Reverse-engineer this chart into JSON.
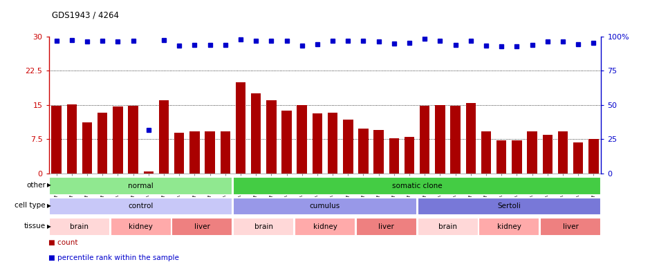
{
  "title": "GDS1943 / 4264",
  "samples": [
    "GSM69825",
    "GSM69826",
    "GSM69827",
    "GSM69828",
    "GSM69801",
    "GSM69802",
    "GSM69803",
    "GSM69804",
    "GSM69813",
    "GSM69814",
    "GSM69815",
    "GSM69816",
    "GSM69833",
    "GSM69834",
    "GSM69835",
    "GSM69836",
    "GSM69809",
    "GSM69810",
    "GSM69811",
    "GSM69812",
    "GSM69821",
    "GSM69822",
    "GSM69823",
    "GSM69824",
    "GSM69829",
    "GSM69830",
    "GSM69831",
    "GSM69832",
    "GSM69805",
    "GSM69806",
    "GSM69807",
    "GSM69808",
    "GSM69817",
    "GSM69818",
    "GSM69819",
    "GSM69820"
  ],
  "counts": [
    14.8,
    15.1,
    11.2,
    13.3,
    14.7,
    14.9,
    0.4,
    16.0,
    9.0,
    9.2,
    9.3,
    9.3,
    20.0,
    17.5,
    16.0,
    13.8,
    15.0,
    13.2,
    13.3,
    11.8,
    9.9,
    9.5,
    7.8,
    8.0,
    14.9,
    15.0,
    14.9,
    15.5,
    9.2,
    7.2,
    7.2,
    9.2,
    8.5,
    9.2,
    6.8,
    7.5
  ],
  "percentiles_left": [
    29.0,
    29.2,
    28.9,
    29.0,
    28.9,
    29.0,
    9.5,
    29.2,
    28.0,
    28.2,
    28.2,
    28.2,
    29.3,
    29.1,
    29.1,
    29.1,
    28.0,
    28.3,
    29.0,
    29.0,
    29.0,
    28.9,
    28.4,
    28.6,
    29.5,
    29.1,
    28.2,
    29.0,
    28.0,
    27.8,
    27.8,
    28.2,
    28.9,
    28.9,
    28.3,
    28.6
  ],
  "bar_color": "#AA0000",
  "dot_color": "#0000CC",
  "ylim_left": [
    0,
    30
  ],
  "ylim_right": [
    0,
    100
  ],
  "yticks_left": [
    0,
    7.5,
    15,
    22.5,
    30
  ],
  "ytick_labels_left": [
    "0",
    "7.5",
    "15",
    "22.5",
    "30"
  ],
  "yticks_right": [
    0,
    25,
    50,
    75,
    100
  ],
  "ytick_labels_right": [
    "0",
    "25",
    "50",
    "75",
    "100%"
  ],
  "gridlines": [
    7.5,
    15,
    22.5
  ],
  "group_rows": [
    {
      "label": "other",
      "groups": [
        {
          "text": "normal",
          "start": 0,
          "end": 12,
          "color": "#90E890"
        },
        {
          "text": "somatic clone",
          "start": 12,
          "end": 36,
          "color": "#44CC44"
        }
      ]
    },
    {
      "label": "cell type",
      "groups": [
        {
          "text": "control",
          "start": 0,
          "end": 12,
          "color": "#C8C8F8"
        },
        {
          "text": "cumulus",
          "start": 12,
          "end": 24,
          "color": "#9898E8"
        },
        {
          "text": "Sertoli",
          "start": 24,
          "end": 36,
          "color": "#7878D8"
        }
      ]
    },
    {
      "label": "tissue",
      "groups": [
        {
          "text": "brain",
          "start": 0,
          "end": 4,
          "color": "#FFD8D8"
        },
        {
          "text": "kidney",
          "start": 4,
          "end": 8,
          "color": "#FFAAAA"
        },
        {
          "text": "liver",
          "start": 8,
          "end": 12,
          "color": "#EE8080"
        },
        {
          "text": "brain",
          "start": 12,
          "end": 16,
          "color": "#FFD8D8"
        },
        {
          "text": "kidney",
          "start": 16,
          "end": 20,
          "color": "#FFAAAA"
        },
        {
          "text": "liver",
          "start": 20,
          "end": 24,
          "color": "#EE8080"
        },
        {
          "text": "brain",
          "start": 24,
          "end": 28,
          "color": "#FFD8D8"
        },
        {
          "text": "kidney",
          "start": 28,
          "end": 32,
          "color": "#FFAAAA"
        },
        {
          "text": "liver",
          "start": 32,
          "end": 36,
          "color": "#EE8080"
        }
      ]
    }
  ],
  "legend_items": [
    {
      "color": "#AA0000",
      "label": "count"
    },
    {
      "color": "#0000CC",
      "label": "percentile rank within the sample"
    }
  ]
}
